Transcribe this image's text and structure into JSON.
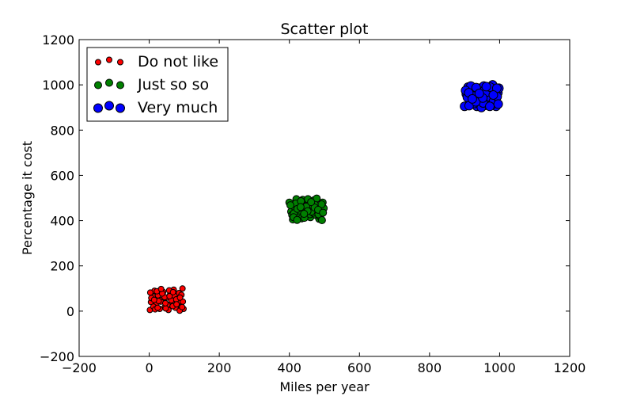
{
  "chart_data": {
    "type": "scatter",
    "title": "Scatter plot",
    "xlabel": "Miles per year",
    "ylabel": "Percentage it cost",
    "xlim": [
      -200,
      1200
    ],
    "ylim": [
      -200,
      1200
    ],
    "xticks": [
      -200,
      0,
      200,
      400,
      600,
      800,
      1000,
      1200
    ],
    "yticks": [
      -200,
      0,
      200,
      400,
      600,
      800,
      1000,
      1200
    ],
    "xtick_labels": [
      "−200",
      "0",
      "200",
      "400",
      "600",
      "800",
      "1000",
      "1200"
    ],
    "ytick_labels": [
      "−200",
      "0",
      "200",
      "400",
      "600",
      "800",
      "1000",
      "1200"
    ],
    "grid": false,
    "legend_position": "top-left",
    "series": [
      {
        "name": "Do not like",
        "color": "#ff0000",
        "marker_scale": "small",
        "points": [
          [
            2,
            5
          ],
          [
            10,
            65
          ],
          [
            5,
            40
          ],
          [
            15,
            90
          ],
          [
            20,
            30
          ],
          [
            25,
            70
          ],
          [
            30,
            10
          ],
          [
            35,
            50
          ],
          [
            40,
            85
          ],
          [
            45,
            20
          ],
          [
            50,
            60
          ],
          [
            55,
            5
          ],
          [
            60,
            75
          ],
          [
            65,
            35
          ],
          [
            70,
            95
          ],
          [
            75,
            15
          ],
          [
            80,
            55
          ],
          [
            85,
            80
          ],
          [
            90,
            25
          ],
          [
            95,
            100
          ],
          [
            98,
            10
          ],
          [
            12,
            20
          ],
          [
            22,
            88
          ],
          [
            33,
            42
          ],
          [
            44,
            62
          ],
          [
            52,
            28
          ],
          [
            63,
            48
          ],
          [
            72,
            68
          ],
          [
            82,
            38
          ],
          [
            92,
            72
          ],
          [
            6,
            58
          ],
          [
            17,
            8
          ],
          [
            27,
            45
          ],
          [
            37,
            78
          ],
          [
            47,
            12
          ],
          [
            57,
            92
          ],
          [
            67,
            22
          ],
          [
            77,
            52
          ],
          [
            87,
            2
          ],
          [
            96,
            42
          ],
          [
            3,
            82
          ],
          [
            14,
            50
          ],
          [
            24,
            15
          ],
          [
            34,
            98
          ],
          [
            46,
            35
          ],
          [
            58,
            66
          ],
          [
            68,
            84
          ],
          [
            78,
            30
          ],
          [
            88,
            60
          ],
          [
            94,
            18
          ]
        ]
      },
      {
        "name": "Just so so",
        "color": "#008000",
        "marker_scale": "medium",
        "points": [
          [
            400,
            480
          ],
          [
            405,
            440
          ],
          [
            410,
            405
          ],
          [
            415,
            460
          ],
          [
            420,
            495
          ],
          [
            425,
            420
          ],
          [
            430,
            470
          ],
          [
            435,
            410
          ],
          [
            440,
            450
          ],
          [
            445,
            485
          ],
          [
            450,
            430
          ],
          [
            455,
            475
          ],
          [
            460,
            415
          ],
          [
            465,
            455
          ],
          [
            470,
            490
          ],
          [
            475,
            425
          ],
          [
            480,
            465
          ],
          [
            485,
            408
          ],
          [
            490,
            445
          ],
          [
            495,
            480
          ],
          [
            498,
            455
          ],
          [
            408,
            425
          ],
          [
            418,
            475
          ],
          [
            428,
            445
          ],
          [
            438,
            492
          ],
          [
            448,
            462
          ],
          [
            458,
            428
          ],
          [
            468,
            435
          ],
          [
            478,
            498
          ],
          [
            488,
            418
          ],
          [
            403,
            468
          ],
          [
            413,
            432
          ],
          [
            423,
            452
          ],
          [
            433,
            486
          ],
          [
            443,
            412
          ],
          [
            453,
            495
          ],
          [
            463,
            440
          ],
          [
            473,
            470
          ],
          [
            483,
            428
          ],
          [
            493,
            402
          ],
          [
            412,
            415
          ],
          [
            432,
            460
          ],
          [
            452,
            442
          ],
          [
            472,
            458
          ],
          [
            492,
            472
          ],
          [
            422,
            403
          ],
          [
            442,
            430
          ],
          [
            462,
            482
          ],
          [
            482,
            448
          ],
          [
            496,
            435
          ]
        ]
      },
      {
        "name": "Very much",
        "color": "#0000ff",
        "marker_scale": "large",
        "points": [
          [
            900,
            905
          ],
          [
            905,
            960
          ],
          [
            910,
            990
          ],
          [
            915,
            930
          ],
          [
            920,
            915
          ],
          [
            925,
            975
          ],
          [
            930,
            945
          ],
          [
            935,
            905
          ],
          [
            940,
            985
          ],
          [
            945,
            925
          ],
          [
            950,
            955
          ],
          [
            955,
            995
          ],
          [
            960,
            910
          ],
          [
            965,
            940
          ],
          [
            970,
            970
          ],
          [
            975,
            920
          ],
          [
            980,
            1000
          ],
          [
            985,
            935
          ],
          [
            990,
            905
          ],
          [
            995,
            965
          ],
          [
            998,
            985
          ],
          [
            908,
            945
          ],
          [
            918,
            995
          ],
          [
            928,
            918
          ],
          [
            938,
            960
          ],
          [
            948,
            900
          ],
          [
            958,
            978
          ],
          [
            968,
            948
          ],
          [
            978,
            912
          ],
          [
            988,
            958
          ],
          [
            903,
            975
          ],
          [
            913,
            908
          ],
          [
            923,
            952
          ],
          [
            933,
            988
          ],
          [
            943,
            938
          ],
          [
            953,
            920
          ],
          [
            963,
            968
          ],
          [
            973,
            990
          ],
          [
            983,
            928
          ],
          [
            993,
            948
          ],
          [
            912,
            965
          ],
          [
            932,
            925
          ],
          [
            952,
            942
          ],
          [
            972,
            905
          ],
          [
            992,
            985
          ],
          [
            922,
            938
          ],
          [
            942,
            962
          ],
          [
            962,
            992
          ],
          [
            982,
            955
          ],
          [
            996,
            915
          ]
        ]
      }
    ]
  }
}
